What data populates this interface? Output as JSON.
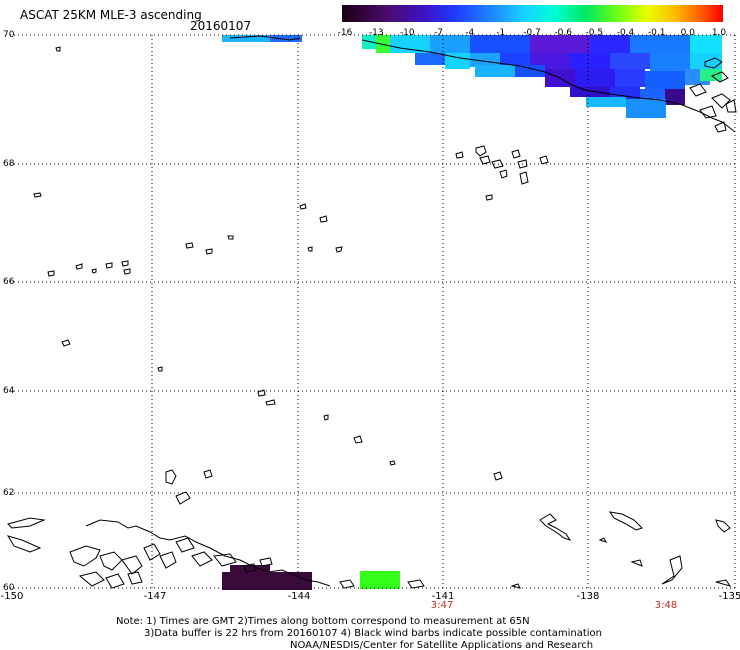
{
  "header": {
    "title": "ASCAT 25KM MLE-3 ascending",
    "date": "20160107"
  },
  "colorbar": {
    "ticks": [
      "-16",
      "-13",
      "-10",
      "-7",
      "-4",
      "-1",
      "-0.7",
      "-0.6",
      "-0.5",
      "-0.4",
      "-0.1",
      "0.0",
      "1.0"
    ]
  },
  "axes": {
    "lat_labels": [
      "70",
      "68",
      "66",
      "64",
      "62",
      "60"
    ],
    "lon_labels": [
      "-150",
      "-147",
      "-144",
      "-141",
      "-138",
      "-135"
    ]
  },
  "times": [
    "3:47",
    "3:48"
  ],
  "notes": {
    "line1": "Note: 1) Times are GMT 2)Times along bottom correspond to measurement at 65N",
    "line2": "3)Data buffer is 22 hrs from 20160107 4) Black wind barbs indicate possible contamination",
    "line3": "NOAA/NESDIS/Center for Satellite Applications and Research"
  },
  "colors": {
    "accent_time": "#c8281e",
    "gridline": "#000000"
  }
}
